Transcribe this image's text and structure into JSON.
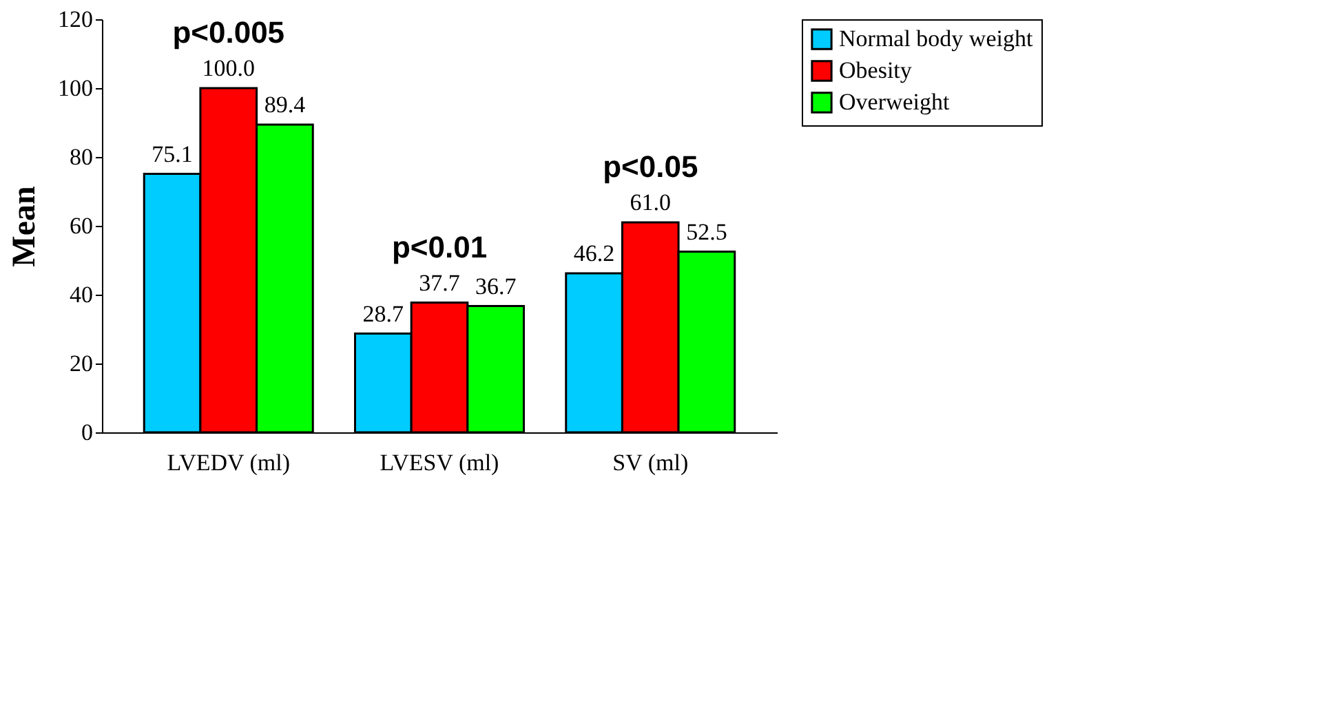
{
  "chart_data": {
    "type": "bar",
    "ylabel": "Mean",
    "categories": [
      "LVEDV (ml)",
      "LVESV (ml)",
      "SV (ml)"
    ],
    "series": [
      {
        "name": "Normal body weight",
        "color": "#00ccff",
        "values": [
          75.1,
          28.7,
          46.2
        ],
        "value_labels": [
          "75.1",
          "28.7",
          "46.2"
        ]
      },
      {
        "name": "Obesity",
        "color": "#ff0000",
        "values": [
          100.0,
          37.7,
          61.0
        ],
        "value_labels": [
          "100.0",
          "37.7",
          "61.0"
        ]
      },
      {
        "name": "Overweight",
        "color": "#00ff00",
        "values": [
          89.4,
          36.7,
          52.5
        ],
        "value_labels": [
          "89.4",
          "36.7",
          "52.5"
        ]
      }
    ],
    "ylim": [
      0,
      120
    ],
    "yticks": [
      0,
      20,
      40,
      60,
      80,
      100,
      120
    ],
    "annotations": [
      "p<0.005",
      "p<0.01",
      "p<0.05"
    ],
    "grid": false,
    "legend": "right"
  }
}
